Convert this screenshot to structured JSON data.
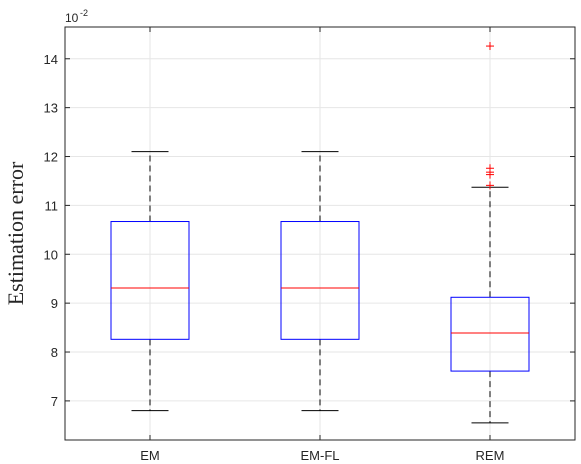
{
  "chart_data": {
    "type": "box",
    "title": "",
    "xlabel": "",
    "ylabel": "Estimation error",
    "y_exponent_base": "10",
    "y_exponent": "-2",
    "ylim": [
      6.2,
      14.65
    ],
    "yticks": [
      7,
      8,
      9,
      10,
      11,
      12,
      13,
      14
    ],
    "grid": true,
    "categories": [
      "EM",
      "EM-FL",
      "REM"
    ],
    "boxes": [
      {
        "name": "EM",
        "whisker_low": 6.8,
        "q1": 8.26,
        "median": 9.31,
        "q3": 10.67,
        "whisker_high": 12.1,
        "outliers": []
      },
      {
        "name": "EM-FL",
        "whisker_low": 6.8,
        "q1": 8.26,
        "median": 9.31,
        "q3": 10.67,
        "whisker_high": 12.1,
        "outliers": []
      },
      {
        "name": "REM",
        "whisker_low": 6.55,
        "q1": 7.61,
        "median": 8.39,
        "q3": 9.12,
        "whisker_high": 11.37,
        "outliers": [
          11.41,
          11.63,
          11.68,
          11.76,
          14.26
        ]
      }
    ],
    "colors": {
      "box": "#0000ff",
      "median": "#ff0000",
      "whisker": "#000000",
      "outlier": "#ff0000",
      "grid": "#e6e6e6",
      "axis": "#262626"
    }
  }
}
